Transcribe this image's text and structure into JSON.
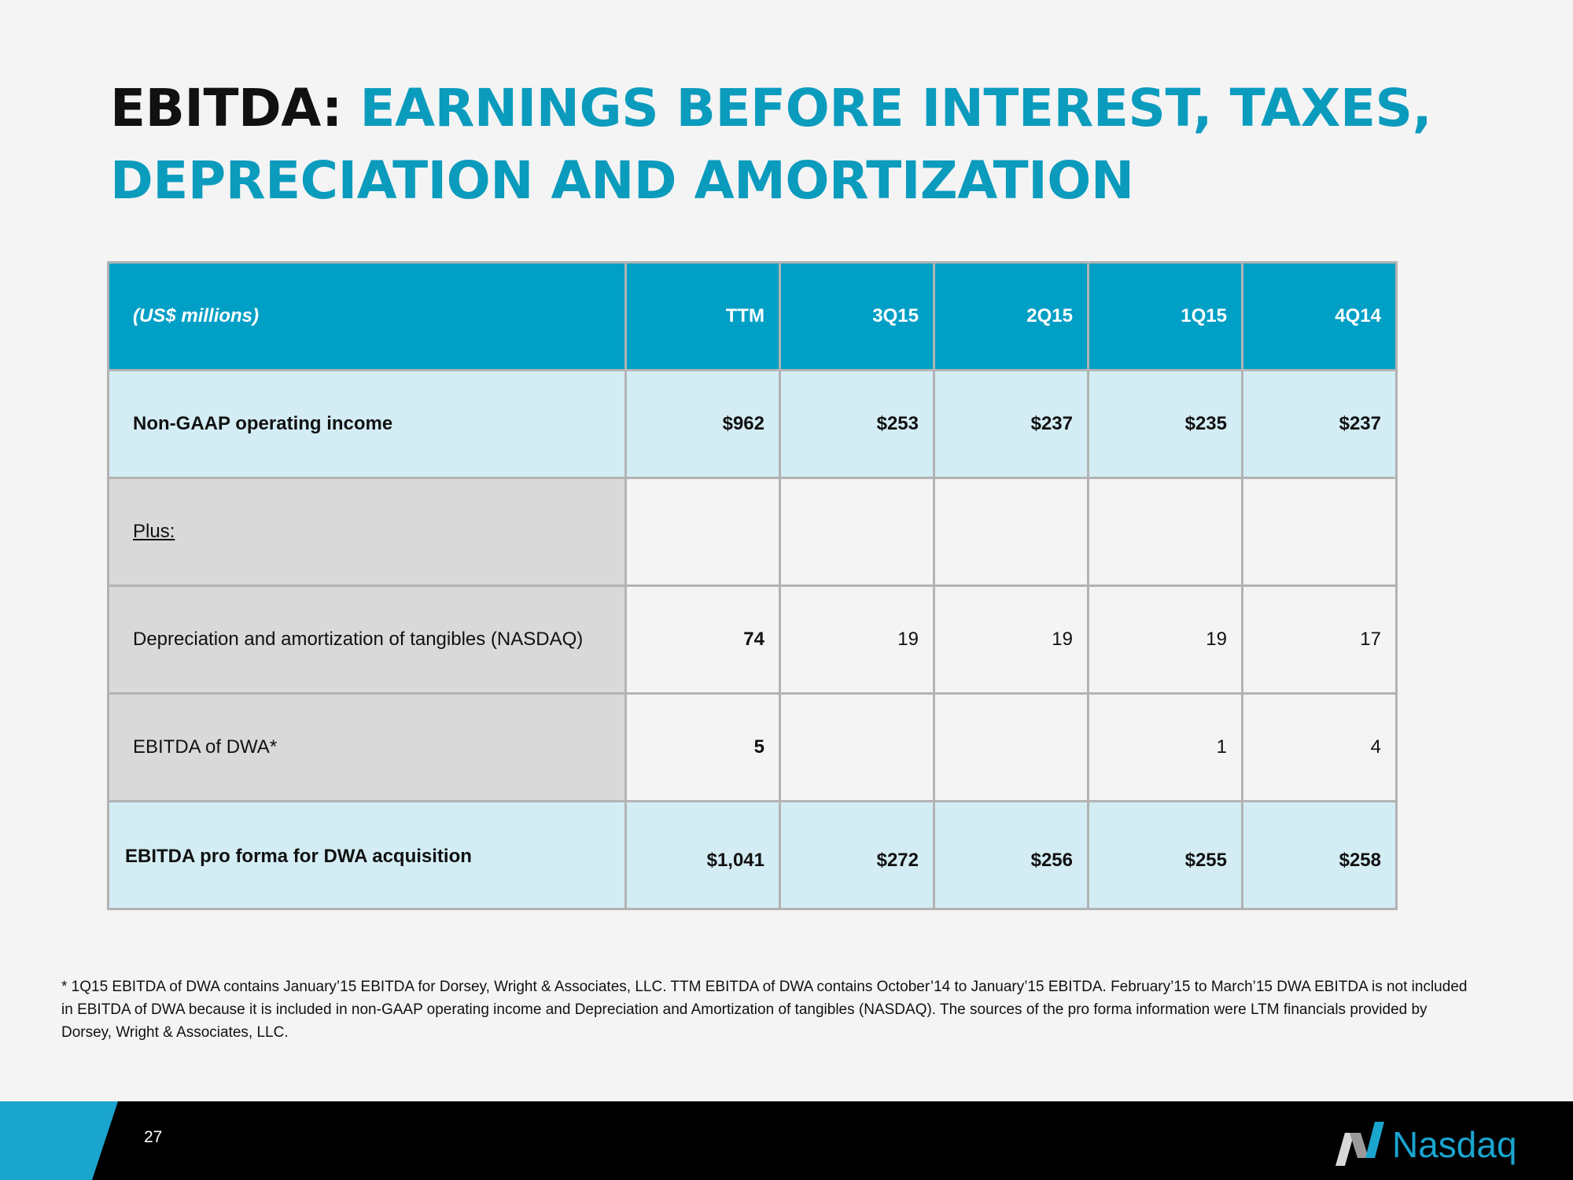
{
  "title": {
    "prefix": "EBITDA:",
    "rest_line1": "EARNINGS BEFORE INTEREST, TAXES,",
    "rest_line2": "DEPRECIATION AND AMORTIZATION"
  },
  "table": {
    "header": {
      "label": "(US$ millions)",
      "columns": [
        "TTM",
        "3Q15",
        "2Q15",
        "1Q15",
        "4Q14"
      ]
    },
    "rows": [
      {
        "label": "Non-GAAP operating income",
        "values": [
          "$962",
          "$253",
          "$237",
          "$235",
          "$237"
        ]
      },
      {
        "label": "Plus:",
        "values": [
          "",
          "",
          "",
          "",
          ""
        ]
      },
      {
        "label": "Depreciation and amortization of tangibles (NASDAQ)",
        "values": [
          "74",
          "19",
          "19",
          "19",
          "17"
        ]
      },
      {
        "label": "EBITDA of DWA*",
        "values": [
          "5",
          "",
          "",
          "1",
          "4"
        ]
      },
      {
        "label": "EBITDA pro forma for DWA acquisition",
        "values": [
          "$1,041",
          "$272",
          "$256",
          "$255",
          "$258"
        ]
      }
    ]
  },
  "footnote": "* 1Q15 EBITDA of DWA contains January’15 EBITDA for Dorsey, Wright & Associates, LLC. TTM EBITDA of DWA contains October’14 to January’15 EBITDA. February’15 to March’15 DWA EBITDA is not included in EBITDA of DWA because it is included in non-GAAP operating income and Depreciation and Amortization of tangibles (NASDAQ). The sources of the pro forma information were LTM financials provided by Dorsey, Wright & Associates, LLC.",
  "footer": {
    "page_number": "27",
    "logo_text": "Nasdaq",
    "logo_icon": "nasdaq-n-icon",
    "accent_color": "#1aa5cf"
  },
  "colors": {
    "header_blue": "#009fc6",
    "light_blue_row": "#d4edf5",
    "gray_cell": "#d9d9d9",
    "title_blue": "#0b9bbd"
  }
}
